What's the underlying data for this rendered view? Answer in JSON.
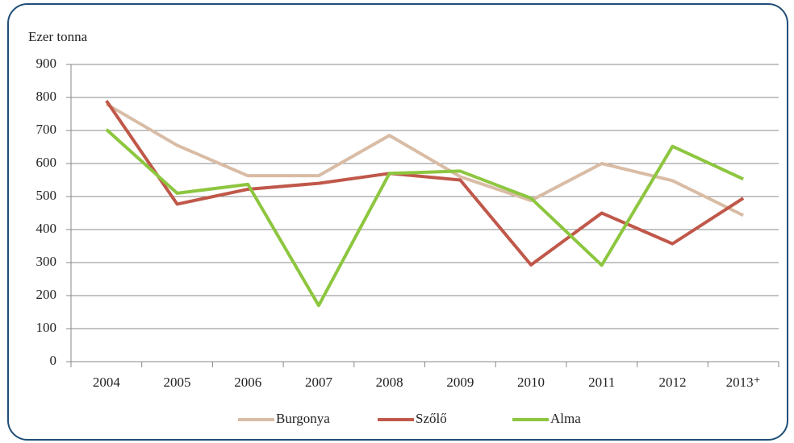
{
  "chart_data": {
    "type": "line",
    "y_label": "Ezer tonna",
    "categories": [
      "2004",
      "2005",
      "2006",
      "2007",
      "2008",
      "2009",
      "2010",
      "2011",
      "2012",
      "2013⁺"
    ],
    "series": [
      {
        "name": "Burgonya",
        "color": "#d9bca5",
        "values": [
          780,
          655,
          563,
          563,
          685,
          560,
          488,
          600,
          548,
          443
        ]
      },
      {
        "name": "Szőlő",
        "color": "#c0584a",
        "values": [
          790,
          477,
          522,
          540,
          570,
          550,
          293,
          450,
          357,
          495
        ]
      },
      {
        "name": "Alma",
        "color": "#8dc63f",
        "values": [
          703,
          510,
          537,
          170,
          570,
          577,
          495,
          292,
          652,
          553
        ]
      }
    ],
    "ylim": [
      0,
      900
    ],
    "yticks": [
      0,
      100,
      200,
      300,
      400,
      500,
      600,
      700,
      800,
      900
    ],
    "grid": true,
    "legend": "bottom"
  }
}
